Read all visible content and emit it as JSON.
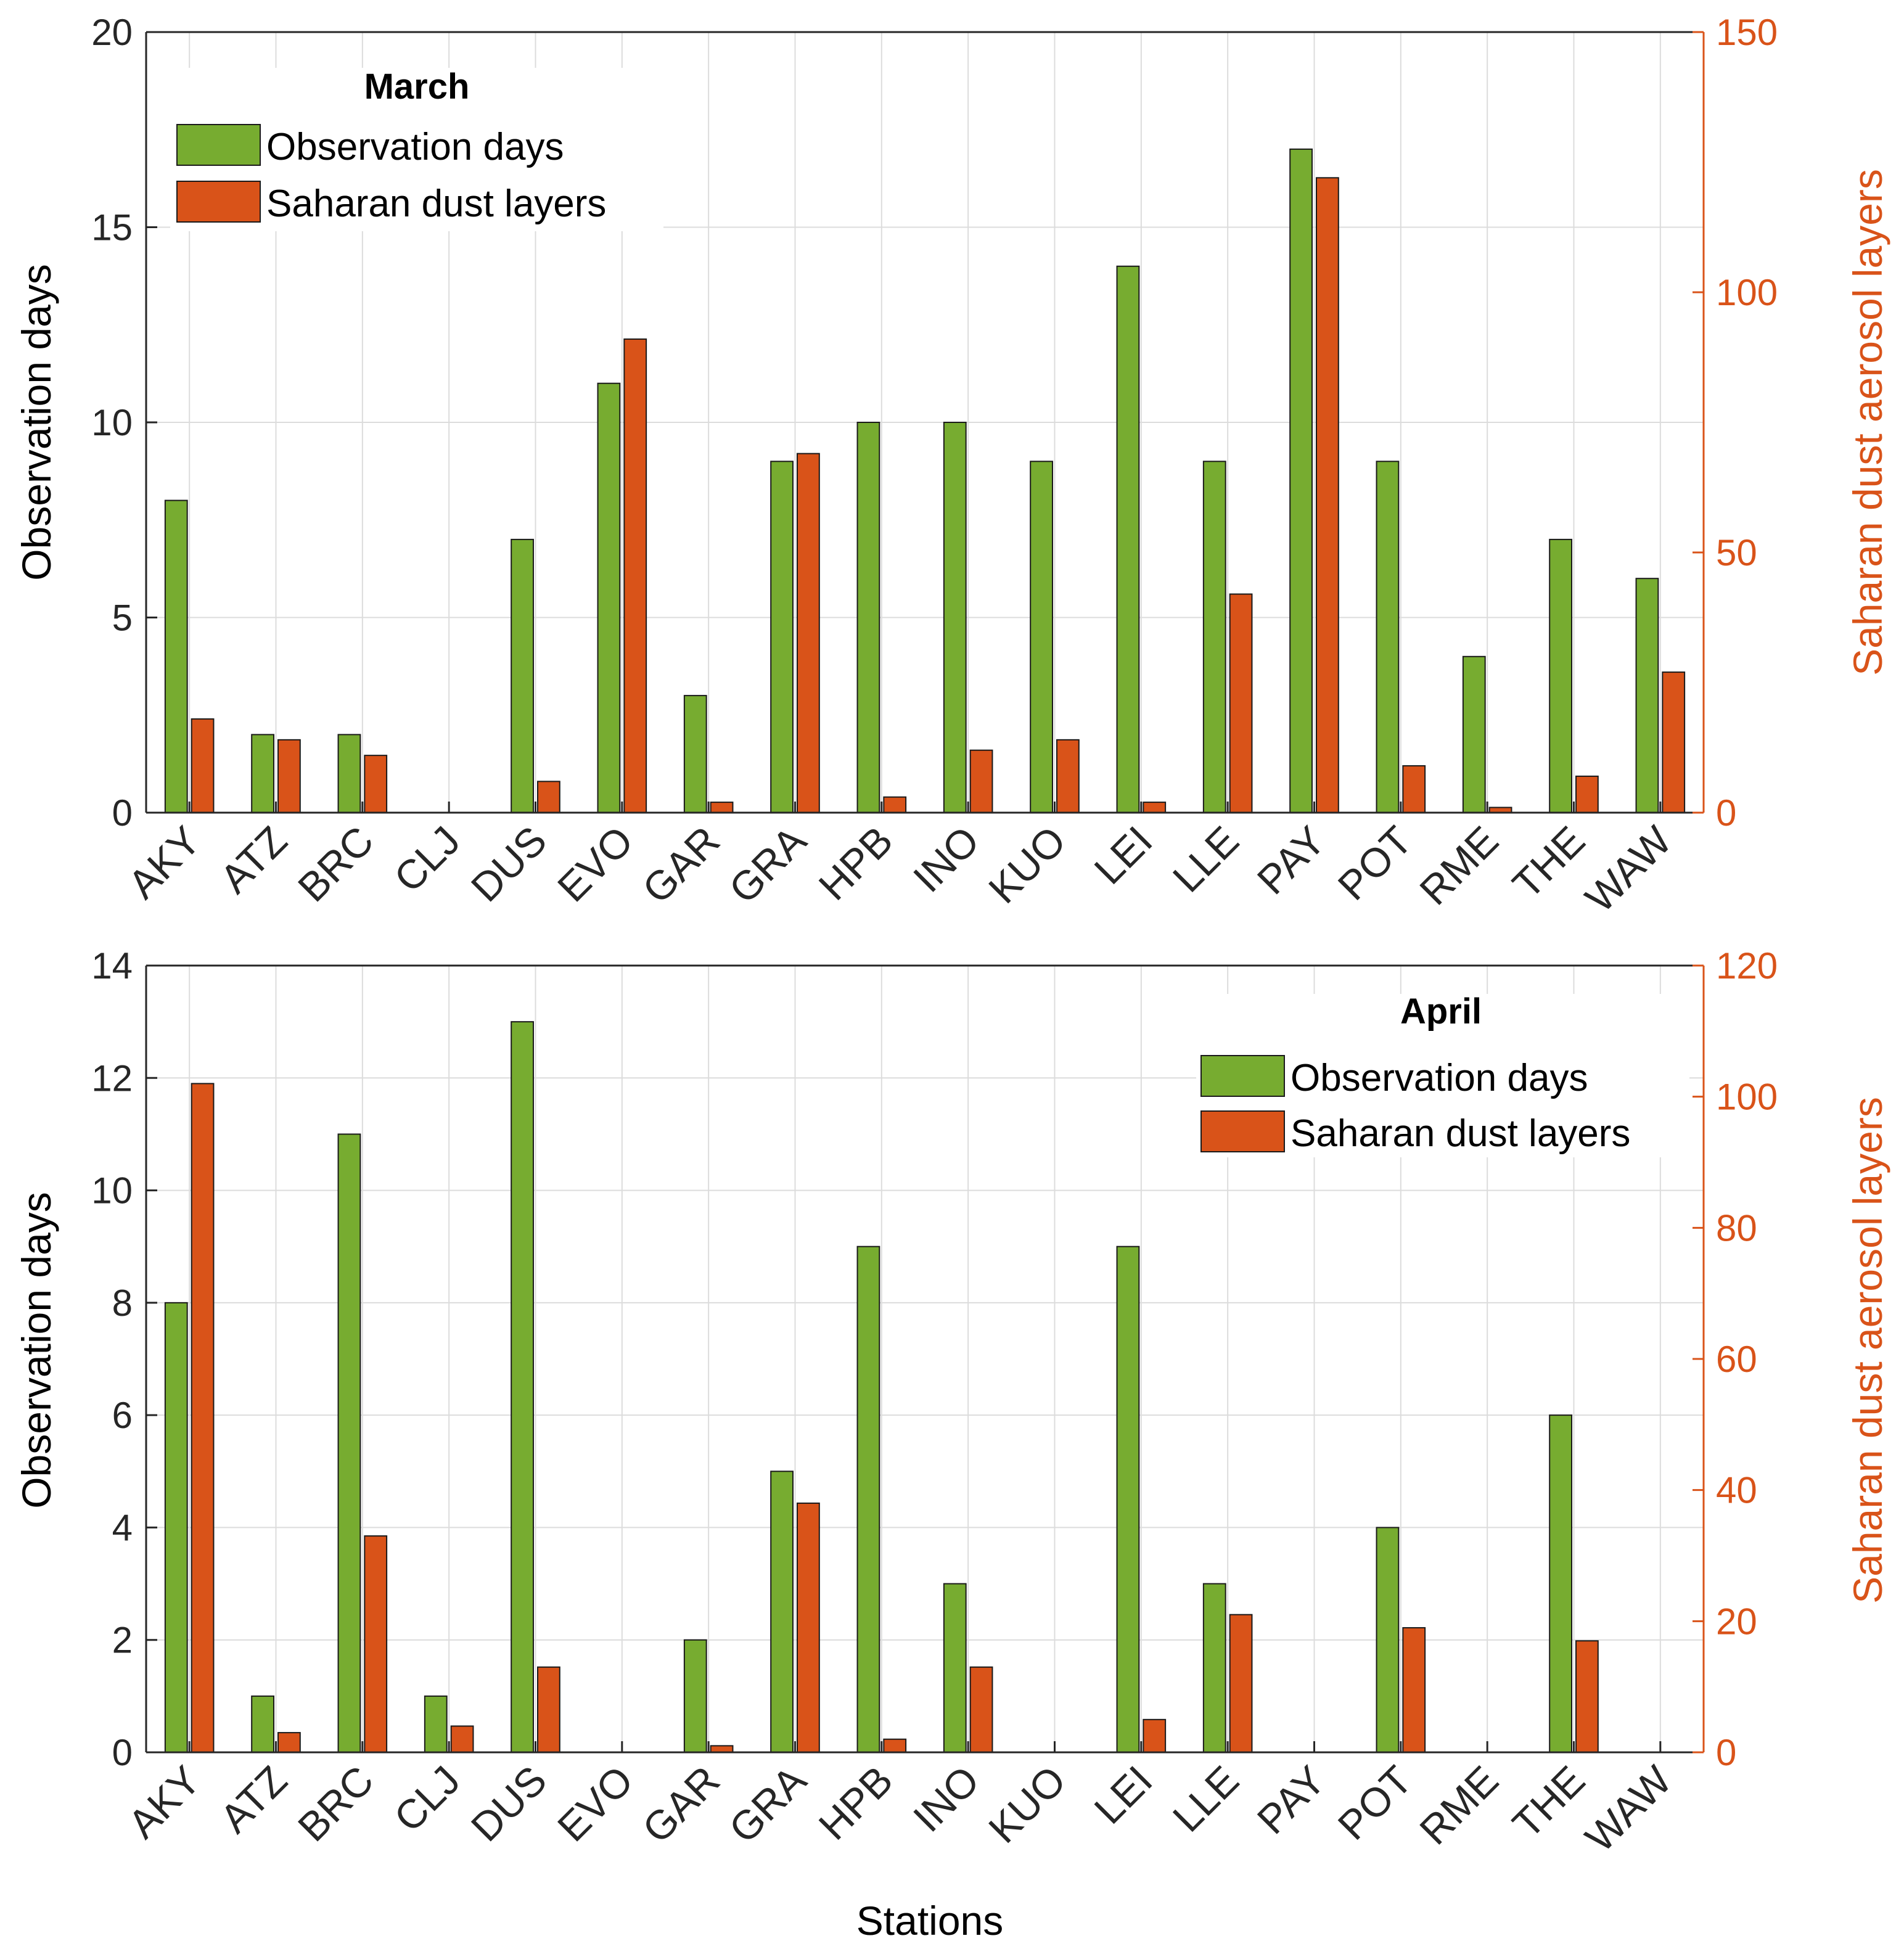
{
  "colors": {
    "observation_days": "#77ac30",
    "saharan_dust_layers": "#d95319",
    "right_axis": "#d95319",
    "grid": "#dcdcdc",
    "axis": "#262626"
  },
  "chart_data": [
    {
      "type": "bar",
      "title": "March",
      "xlabel": "",
      "ylabel": "Observation days",
      "ylabel_right": "Saharan dust aerosol layers",
      "ylim": [
        0,
        20
      ],
      "ylim_right": [
        0,
        150
      ],
      "yticks": [
        0,
        5,
        10,
        15,
        20
      ],
      "yticks_right": [
        0,
        50,
        100,
        150
      ],
      "grid": true,
      "legend_position": "top-left",
      "categories": [
        "AKY",
        "ATZ",
        "BRC",
        "CLJ",
        "DUS",
        "EVO",
        "GAR",
        "GRA",
        "HPB",
        "INO",
        "KUO",
        "LEI",
        "LLE",
        "PAY",
        "POT",
        "RME",
        "THE",
        "WAW"
      ],
      "series": [
        {
          "name": "Observation days",
          "axis": "left",
          "values": [
            8,
            2,
            2,
            0,
            7,
            11,
            3,
            9,
            10,
            10,
            9,
            14,
            9,
            17,
            9,
            4,
            7,
            6
          ]
        },
        {
          "name": "Saharan dust layers",
          "axis": "right",
          "values": [
            18,
            14,
            11,
            0,
            6,
            91,
            2,
            69,
            3,
            12,
            14,
            2,
            42,
            122,
            9,
            1,
            7,
            27
          ]
        }
      ]
    },
    {
      "type": "bar",
      "title": "April",
      "xlabel": "Stations",
      "ylabel": "Observation days",
      "ylabel_right": "Saharan dust aerosol layers",
      "ylim": [
        0,
        14
      ],
      "ylim_right": [
        0,
        120
      ],
      "yticks": [
        0,
        2,
        4,
        6,
        8,
        10,
        12,
        14
      ],
      "yticks_right": [
        0,
        20,
        40,
        60,
        80,
        100,
        120
      ],
      "grid": true,
      "legend_position": "top-right",
      "categories": [
        "AKY",
        "ATZ",
        "BRC",
        "CLJ",
        "DUS",
        "EVO",
        "GAR",
        "GRA",
        "HPB",
        "INO",
        "KUO",
        "LEI",
        "LLE",
        "PAY",
        "POT",
        "RME",
        "THE",
        "WAW"
      ],
      "series": [
        {
          "name": "Observation days",
          "axis": "left",
          "values": [
            8,
            1,
            11,
            1,
            13,
            0,
            2,
            5,
            9,
            3,
            0,
            9,
            3,
            0,
            4,
            0,
            6,
            0
          ]
        },
        {
          "name": "Saharan dust layers",
          "axis": "right",
          "values": [
            102,
            3,
            33,
            4,
            13,
            0,
            1,
            38,
            2,
            13,
            0,
            5,
            21,
            0,
            19,
            0,
            17,
            0
          ]
        }
      ]
    }
  ]
}
